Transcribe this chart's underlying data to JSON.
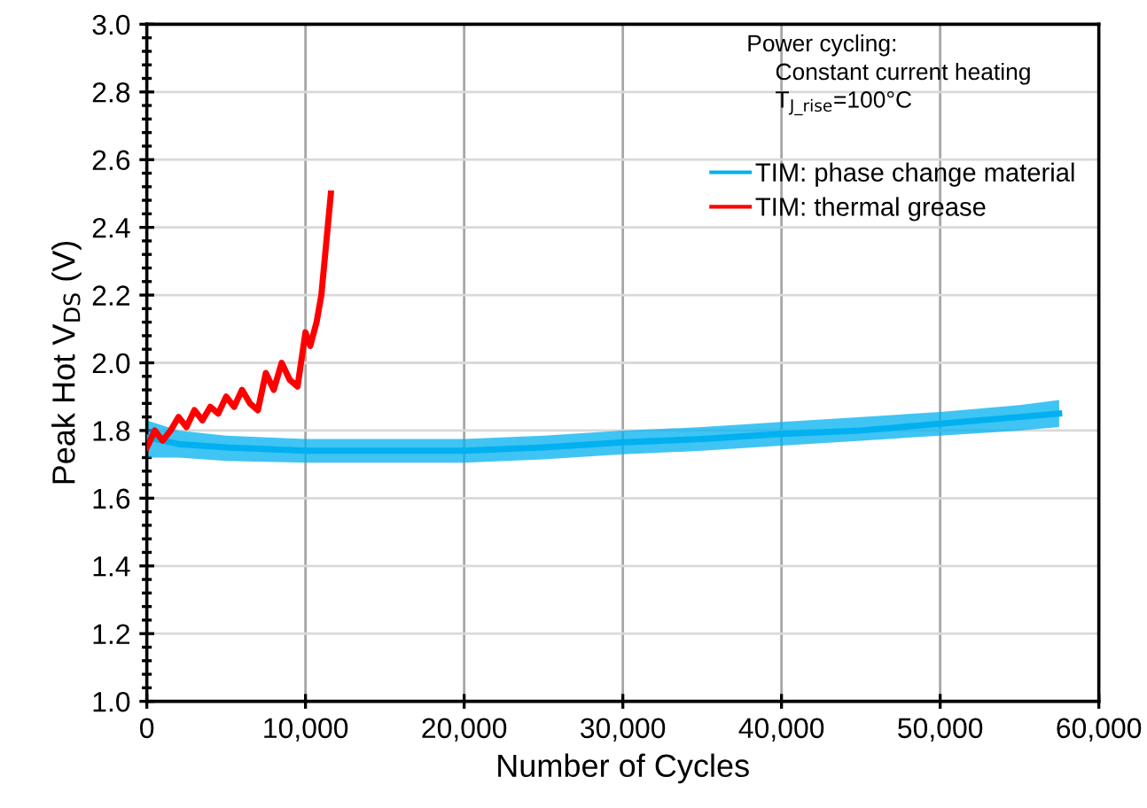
{
  "chart_data": {
    "type": "line",
    "xlabel": "Number of Cycles",
    "ylabel": "Peak Hot V$_{DS}$ (V)",
    "annotations": [
      "Power cycling:",
      "Constant current heating",
      "T$_{J_rise}$=100°C"
    ],
    "xlim": [
      0,
      60000
    ],
    "xticks": [
      {
        "value": 0,
        "label": "0"
      },
      {
        "value": 10000,
        "label": "10,000"
      },
      {
        "value": 20000,
        "label": "20,000"
      },
      {
        "value": 30000,
        "label": "30,000"
      },
      {
        "value": 40000,
        "label": "40,000"
      },
      {
        "value": 50000,
        "label": "50,000"
      },
      {
        "value": 60000,
        "label": "60,000"
      }
    ],
    "ylim": [
      1.0,
      3.0
    ],
    "yticks": [
      {
        "value": 1.0,
        "label": "1.0"
      },
      {
        "value": 1.2,
        "label": "1.2"
      },
      {
        "value": 1.4,
        "label": "1.4"
      },
      {
        "value": 1.6,
        "label": "1.6"
      },
      {
        "value": 1.8,
        "label": "1.8"
      },
      {
        "value": 2.0,
        "label": "2.0"
      },
      {
        "value": 2.2,
        "label": "2.2"
      },
      {
        "value": 2.4,
        "label": "2.4"
      },
      {
        "value": 2.6,
        "label": "2.6"
      },
      {
        "value": 2.8,
        "label": "2.8"
      },
      {
        "value": 3.0,
        "label": "3.0"
      }
    ],
    "grid": true,
    "legend": "top right",
    "line_style": "solid",
    "marker": "none",
    "series": [
      {
        "name": "TIM: phase change material",
        "color": "#00b0f0",
        "x": [
          0,
          2000,
          5000,
          10000,
          15000,
          20000,
          25000,
          30000,
          35000,
          40000,
          45000,
          50000,
          55000,
          57500
        ],
        "values": [
          1.78,
          1.76,
          1.75,
          1.74,
          1.74,
          1.74,
          1.75,
          1.765,
          1.775,
          1.79,
          1.8,
          1.82,
          1.84,
          1.85
        ],
        "lower": [
          1.72,
          1.72,
          1.71,
          1.705,
          1.705,
          1.705,
          1.715,
          1.73,
          1.74,
          1.755,
          1.77,
          1.785,
          1.8,
          1.81
        ],
        "upper": [
          1.83,
          1.8,
          1.785,
          1.775,
          1.775,
          1.775,
          1.785,
          1.8,
          1.81,
          1.825,
          1.84,
          1.855,
          1.875,
          1.89
        ]
      },
      {
        "name": "TIM: thermal grease",
        "color": "#ff0000",
        "x": [
          0,
          500,
          1000,
          1500,
          2000,
          2500,
          3000,
          3500,
          4000,
          4500,
          5000,
          5500,
          6000,
          6500,
          7000,
          7500,
          8000,
          8500,
          9000,
          9500,
          10000,
          10300,
          10700,
          11000,
          11300,
          11600
        ],
        "values": [
          1.75,
          1.8,
          1.77,
          1.8,
          1.84,
          1.81,
          1.86,
          1.83,
          1.87,
          1.85,
          1.9,
          1.87,
          1.92,
          1.88,
          1.86,
          1.97,
          1.92,
          2.0,
          1.95,
          1.93,
          2.09,
          2.05,
          2.12,
          2.2,
          2.35,
          2.5
        ]
      }
    ]
  }
}
